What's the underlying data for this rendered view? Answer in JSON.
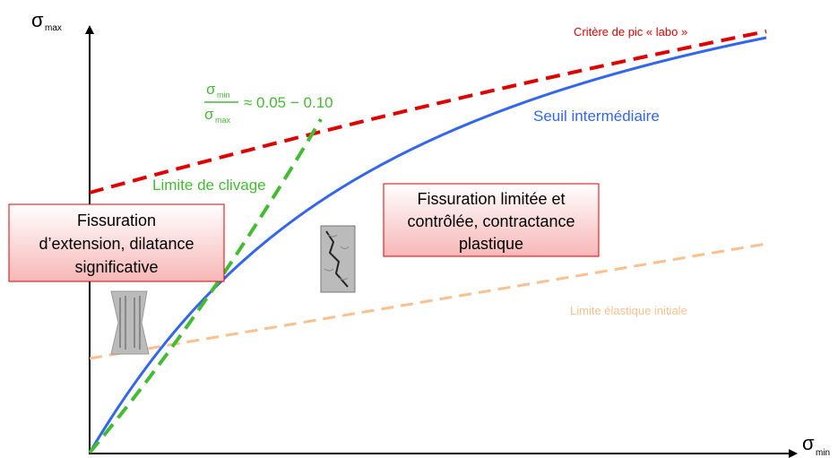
{
  "axes": {
    "y_label": {
      "symbol": "σ",
      "subscript": "max"
    },
    "x_label": {
      "symbol": "σ",
      "subscript": "min"
    }
  },
  "curves": [
    {
      "label": "Critère de pic « labo »"
    },
    {
      "label": "Seuil intermédiaire"
    },
    {
      "label": "Limite de clivage"
    },
    {
      "label": "Limite élastique initiale"
    }
  ],
  "ratio": {
    "numerator": {
      "symbol": "σ",
      "subscript": "min"
    },
    "denominator": {
      "symbol": "σ",
      "subscript": "max"
    },
    "range": "≈ 0.05 − 0.10"
  },
  "boxes": [
    {
      "lines": [
        "Fissuration",
        "d’extension, dilatance",
        "significative"
      ]
    },
    {
      "lines": [
        "Fissuration limitée et",
        "contrôlée, contractance",
        "plastique"
      ]
    }
  ]
}
